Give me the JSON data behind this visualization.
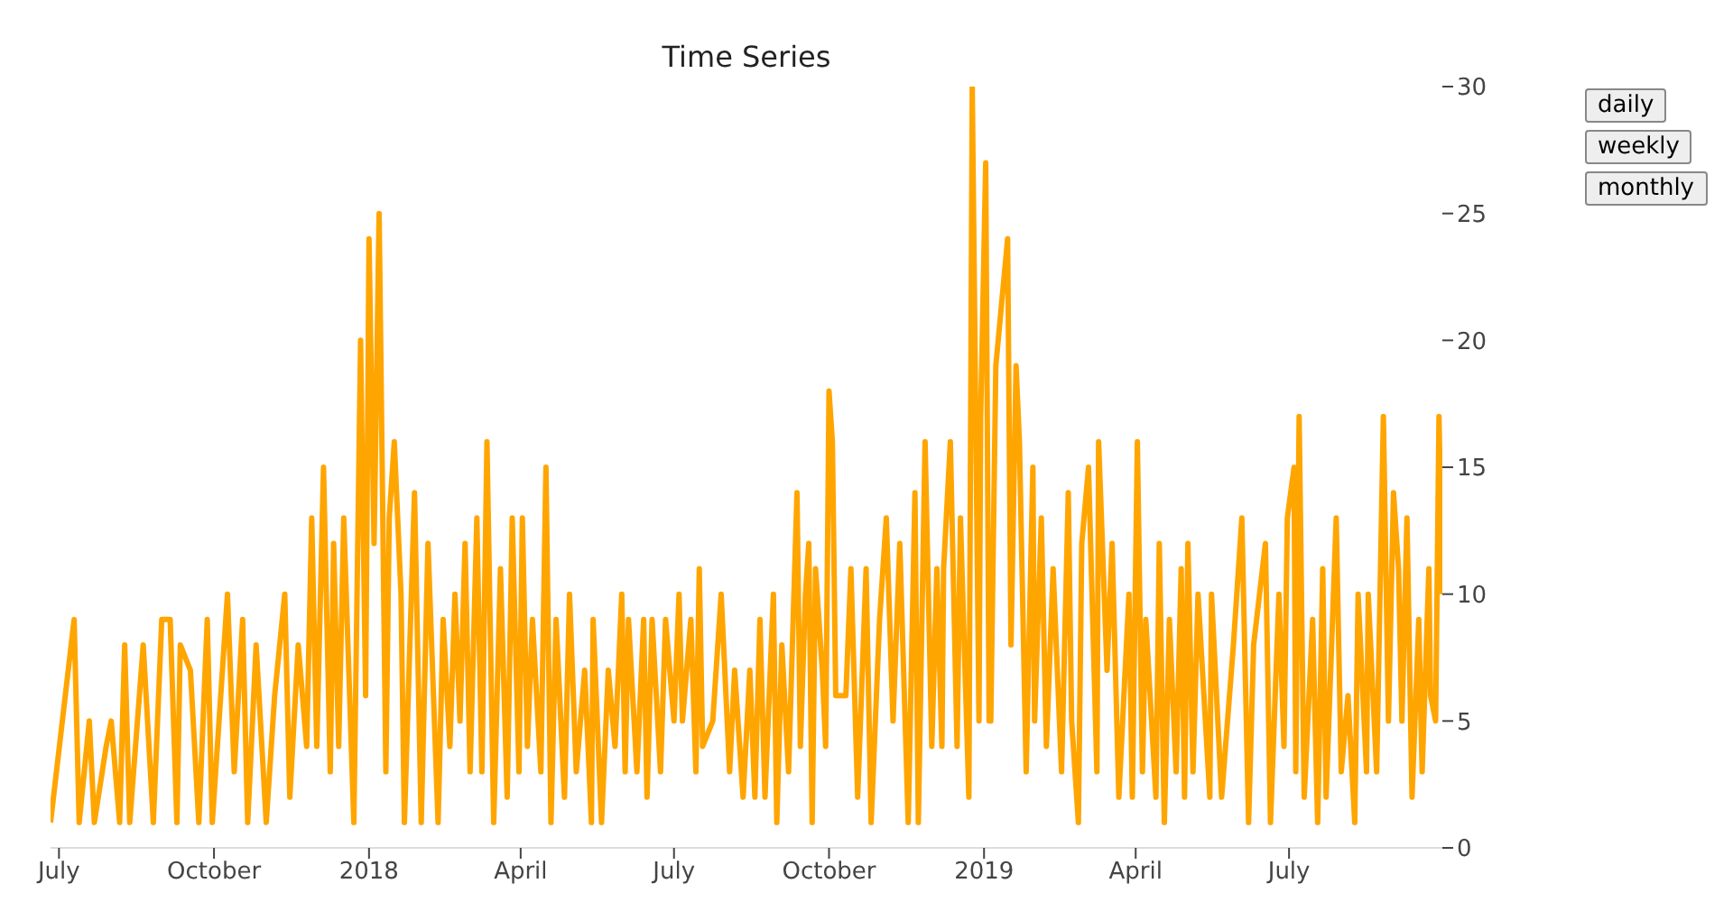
{
  "chart_data": {
    "type": "line",
    "title": "Time Series",
    "annotations": [
      "daily",
      "weekly",
      "monthly"
    ],
    "xlim": [
      "2017-06-26",
      "2019-09-30"
    ],
    "xticks": [
      {
        "value": "2017-07-01",
        "label": "July"
      },
      {
        "value": "2017-10-01",
        "label": "October"
      },
      {
        "value": "2018-01-01",
        "label": "2018"
      },
      {
        "value": "2018-04-01",
        "label": "April"
      },
      {
        "value": "2018-07-01",
        "label": "July"
      },
      {
        "value": "2018-10-01",
        "label": "October"
      },
      {
        "value": "2019-01-01",
        "label": "2019"
      },
      {
        "value": "2019-04-01",
        "label": "April"
      },
      {
        "value": "2019-07-01",
        "label": "July"
      }
    ],
    "ylim": [
      0,
      30
    ],
    "yticks": [
      0,
      5,
      10,
      15,
      20,
      25,
      30
    ],
    "grid": false,
    "legend": false,
    "x": [
      "2017-06-26",
      "2017-07-10",
      "2017-07-13",
      "2017-07-19",
      "2017-07-22",
      "2017-07-29",
      "2017-08-01",
      "2017-08-06",
      "2017-08-09",
      "2017-08-12",
      "2017-08-20",
      "2017-08-26",
      "2017-08-31",
      "2017-09-05",
      "2017-09-09",
      "2017-09-11",
      "2017-09-17",
      "2017-09-22",
      "2017-09-27",
      "2017-09-30",
      "2017-10-09",
      "2017-10-13",
      "2017-10-18",
      "2017-10-21",
      "2017-10-26",
      "2017-11-01",
      "2017-11-06",
      "2017-11-12",
      "2017-11-15",
      "2017-11-20",
      "2017-11-25",
      "2017-11-28",
      "2017-12-01",
      "2017-12-05",
      "2017-12-09",
      "2017-12-11",
      "2017-12-14",
      "2017-12-17",
      "2017-12-23",
      "2017-12-27",
      "2017-12-30",
      "2018-01-01",
      "2018-01-04",
      "2018-01-07",
      "2018-01-11",
      "2018-01-13",
      "2018-01-16",
      "2018-01-20",
      "2018-01-22",
      "2018-01-28",
      "2018-02-01",
      "2018-02-05",
      "2018-02-11",
      "2018-02-14",
      "2018-02-18",
      "2018-02-21",
      "2018-02-24",
      "2018-02-27",
      "2018-03-02",
      "2018-03-06",
      "2018-03-09",
      "2018-03-12",
      "2018-03-16",
      "2018-03-20",
      "2018-03-24",
      "2018-03-27",
      "2018-03-31",
      "2018-04-02",
      "2018-04-05",
      "2018-04-08",
      "2018-04-13",
      "2018-04-16",
      "2018-04-19",
      "2018-04-22",
      "2018-04-27",
      "2018-04-30",
      "2018-05-04",
      "2018-05-09",
      "2018-05-13",
      "2018-05-14",
      "2018-05-19",
      "2018-05-23",
      "2018-05-27",
      "2018-05-31",
      "2018-06-02",
      "2018-06-04",
      "2018-06-09",
      "2018-06-13",
      "2018-06-15",
      "2018-06-18",
      "2018-06-23",
      "2018-06-26",
      "2018-07-01",
      "2018-07-04",
      "2018-07-06",
      "2018-07-11",
      "2018-07-14",
      "2018-07-16",
      "2018-07-18",
      "2018-07-24",
      "2018-07-29",
      "2018-08-03",
      "2018-08-06",
      "2018-08-11",
      "2018-08-15",
      "2018-08-18",
      "2018-08-21",
      "2018-08-24",
      "2018-08-29",
      "2018-08-31",
      "2018-09-03",
      "2018-09-07",
      "2018-09-12",
      "2018-09-14",
      "2018-09-17",
      "2018-09-19",
      "2018-09-21",
      "2018-09-23",
      "2018-09-27",
      "2018-09-29",
      "2018-10-01",
      "2018-10-03",
      "2018-10-05",
      "2018-10-11",
      "2018-10-14",
      "2018-10-18",
      "2018-10-23",
      "2018-10-26",
      "2018-10-31",
      "2018-11-04",
      "2018-11-08",
      "2018-11-12",
      "2018-11-17",
      "2018-11-21",
      "2018-11-23",
      "2018-11-27",
      "2018-12-01",
      "2018-12-04",
      "2018-12-07",
      "2018-12-08",
      "2018-12-12",
      "2018-12-16",
      "2018-12-18",
      "2018-12-23",
      "2018-12-25",
      "2018-12-29",
      "2018-12-30",
      "2019-01-02",
      "2019-01-04",
      "2019-01-05",
      "2019-01-08",
      "2019-01-15",
      "2019-01-17",
      "2019-01-20",
      "2019-01-22",
      "2019-01-26",
      "2019-01-30",
      "2019-01-31",
      "2019-02-04",
      "2019-02-07",
      "2019-02-11",
      "2019-02-16",
      "2019-02-20",
      "2019-02-22",
      "2019-02-26",
      "2019-02-28",
      "2019-03-04",
      "2019-03-09",
      "2019-03-10",
      "2019-03-15",
      "2019-03-18",
      "2019-03-22",
      "2019-03-28",
      "2019-03-30",
      "2019-04-02",
      "2019-04-05",
      "2019-04-07",
      "2019-04-13",
      "2019-04-15",
      "2019-04-18",
      "2019-04-21",
      "2019-04-25",
      "2019-04-28",
      "2019-04-30",
      "2019-05-02",
      "2019-05-05",
      "2019-05-08",
      "2019-05-15",
      "2019-05-16",
      "2019-05-22",
      "2019-05-29",
      "2019-06-03",
      "2019-06-07",
      "2019-06-10",
      "2019-06-17",
      "2019-06-20",
      "2019-06-25",
      "2019-06-28",
      "2019-06-30",
      "2019-07-04",
      "2019-07-05",
      "2019-07-07",
      "2019-07-10",
      "2019-07-15",
      "2019-07-18",
      "2019-07-21",
      "2019-07-23",
      "2019-07-29",
      "2019-08-01",
      "2019-08-05",
      "2019-08-09",
      "2019-08-11",
      "2019-08-16",
      "2019-08-17",
      "2019-08-22",
      "2019-08-26",
      "2019-08-29",
      "2019-09-01",
      "2019-09-04",
      "2019-09-06",
      "2019-09-09",
      "2019-09-12",
      "2019-09-16",
      "2019-09-18",
      "2019-09-22",
      "2019-09-23",
      "2019-09-26",
      "2019-09-28",
      "2019-09-30"
    ],
    "series": [
      {
        "color": "#ffa500",
        "values": [
          1,
          9,
          1,
          5,
          1,
          4,
          5,
          1,
          8,
          1,
          8,
          1,
          9,
          9,
          1,
          8,
          7,
          1,
          9,
          1,
          10,
          3,
          9,
          1,
          8,
          1,
          6,
          10,
          2,
          8,
          4,
          13,
          4,
          15,
          3,
          12,
          4,
          13,
          1,
          20,
          6,
          24,
          12,
          25,
          3,
          13,
          16,
          10,
          1,
          14,
          1,
          12,
          1,
          9,
          4,
          10,
          5,
          12,
          3,
          13,
          3,
          16,
          1,
          11,
          2,
          13,
          3,
          13,
          4,
          9,
          3,
          15,
          1,
          9,
          2,
          10,
          3,
          7,
          1,
          9,
          1,
          7,
          4,
          10,
          3,
          9,
          3,
          9,
          2,
          9,
          3,
          9,
          5,
          10,
          5,
          9,
          3,
          11,
          4,
          5,
          10,
          3,
          7,
          2,
          7,
          2,
          9,
          2,
          10,
          1,
          8,
          3,
          14,
          4,
          10,
          12,
          1,
          11,
          7,
          4,
          18,
          16,
          6,
          6,
          11,
          2,
          11,
          1,
          9,
          13,
          5,
          12,
          1,
          14,
          1,
          16,
          4,
          11,
          4,
          11,
          16,
          4,
          13,
          2,
          30,
          5,
          17,
          27,
          5,
          5,
          19,
          24,
          8,
          19,
          16,
          3,
          15,
          5,
          13,
          4,
          11,
          3,
          14,
          5,
          1,
          12,
          15,
          3,
          16,
          7,
          12,
          2,
          10,
          2,
          16,
          3,
          9,
          2,
          12,
          1,
          9,
          3,
          11,
          2,
          12,
          3,
          10,
          2,
          10,
          2,
          8,
          13,
          1,
          8,
          12,
          1,
          10,
          4,
          13,
          15,
          3,
          17,
          2,
          9,
          1,
          11,
          2,
          13,
          3,
          6,
          1,
          10,
          3,
          10,
          3,
          17,
          5,
          14,
          11,
          5,
          13,
          2,
          9,
          3,
          11,
          6,
          5,
          17,
          10
        ]
      }
    ]
  }
}
